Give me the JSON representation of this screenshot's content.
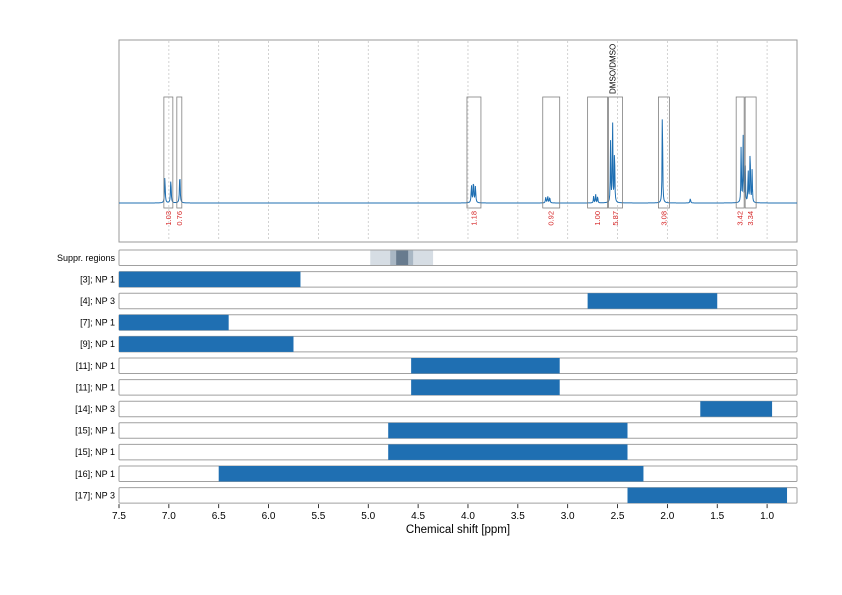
{
  "chart_data": {
    "type": "nmr_spectrum_with_range_bars",
    "xlabel": "Chemical shift [ppm]",
    "xlim": [
      7.5,
      0.7
    ],
    "x_reversed": true,
    "xticks": [
      "7.5",
      "7.0",
      "6.5",
      "6.0",
      "5.5",
      "5.0",
      "4.5",
      "4.0",
      "3.5",
      "3.0",
      "2.5",
      "2.0",
      "1.5",
      "1.0"
    ],
    "grid_vertical": true,
    "spectrum": {
      "color": "#1f6fb2",
      "baseline_y": 0,
      "ylim": [
        -5,
        100
      ],
      "peaks": [
        {
          "x": 7.04,
          "y": 24,
          "w": 0.004
        },
        {
          "x": 6.98,
          "y": 22,
          "w": 0.004
        },
        {
          "x": 6.89,
          "y": 27,
          "w": 0.004
        },
        {
          "x": 3.965,
          "y": 16,
          "w": 0.004
        },
        {
          "x": 3.945,
          "y": 20,
          "w": 0.004
        },
        {
          "x": 3.925,
          "y": 15,
          "w": 0.004
        },
        {
          "x": 3.22,
          "y": 5,
          "w": 0.004
        },
        {
          "x": 3.2,
          "y": 6,
          "w": 0.004
        },
        {
          "x": 3.18,
          "y": 5,
          "w": 0.004
        },
        {
          "x": 2.74,
          "y": 6,
          "w": 0.003
        },
        {
          "x": 2.72,
          "y": 9,
          "w": 0.003
        },
        {
          "x": 2.7,
          "y": 7,
          "w": 0.003
        },
        {
          "x": 2.57,
          "y": 55,
          "w": 0.003
        },
        {
          "x": 2.55,
          "y": 83,
          "w": 0.003
        },
        {
          "x": 2.53,
          "y": 55,
          "w": 0.003
        },
        {
          "x": 2.05,
          "y": 95,
          "w": 0.003
        },
        {
          "x": 1.77,
          "y": 4,
          "w": 0.004
        },
        {
          "x": 1.26,
          "y": 55,
          "w": 0.003
        },
        {
          "x": 1.24,
          "y": 60,
          "w": 0.003
        },
        {
          "x": 1.22,
          "y": 40,
          "w": 0.003
        },
        {
          "x": 1.19,
          "y": 32,
          "w": 0.003
        },
        {
          "x": 1.17,
          "y": 55,
          "w": 0.003
        },
        {
          "x": 1.15,
          "y": 30,
          "w": 0.003
        }
      ],
      "integration_regions": [
        {
          "from": 7.05,
          "to": 6.96,
          "value": "1.03"
        },
        {
          "from": 6.92,
          "to": 6.87,
          "value": "0.76"
        },
        {
          "from": 4.01,
          "to": 3.87,
          "value": "1.18"
        },
        {
          "from": 3.25,
          "to": 3.08,
          "value": "0.92"
        },
        {
          "from": 2.8,
          "to": 2.6,
          "value": "1.00"
        },
        {
          "from": 2.59,
          "to": 2.45,
          "value": "5.87"
        },
        {
          "from": 2.09,
          "to": 1.98,
          "value": "3.08"
        },
        {
          "from": 1.31,
          "to": 1.23,
          "value": "3.42"
        },
        {
          "from": 1.22,
          "to": 1.11,
          "value": "3.34"
        }
      ],
      "annotation": {
        "x": 2.55,
        "text": "DMSO/DMSO"
      }
    },
    "suppressed_regions": {
      "label": "Suppr. regions",
      "bands": [
        {
          "from": 4.98,
          "to": 4.35,
          "shade": "#d6dde4"
        },
        {
          "from": 4.78,
          "to": 4.55,
          "shade": "#a9b7c4"
        },
        {
          "from": 4.72,
          "to": 4.6,
          "shade": "#687b8e"
        }
      ]
    },
    "range_rows": [
      {
        "label": "[3]; NP 1",
        "from": 7.5,
        "to": 5.68
      },
      {
        "label": "[4]; NP 3",
        "from": 2.8,
        "to": 1.5
      },
      {
        "label": "[7]; NP 1",
        "from": 7.5,
        "to": 6.4
      },
      {
        "label": "[9]; NP 1",
        "from": 7.5,
        "to": 5.75
      },
      {
        "label": "[11]; NP 1",
        "from": 4.57,
        "to": 3.08
      },
      {
        "label": "[11]; NP 1",
        "from": 4.57,
        "to": 3.08
      },
      {
        "label": "[14]; NP 3",
        "from": 1.67,
        "to": 0.95
      },
      {
        "label": "[15]; NP 1",
        "from": 4.8,
        "to": 2.4
      },
      {
        "label": "[15]; NP 1",
        "from": 4.8,
        "to": 2.4
      },
      {
        "label": "[16]; NP 1",
        "from": 6.5,
        "to": 2.24
      },
      {
        "label": "[17]; NP 3",
        "from": 2.4,
        "to": 0.8
      }
    ],
    "bar_color": "#1f6fb2"
  }
}
